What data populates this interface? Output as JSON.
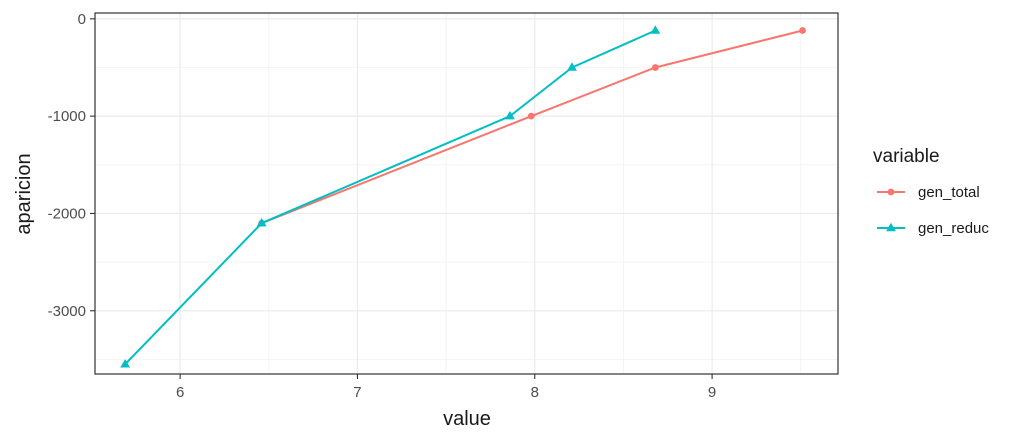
{
  "chart_data": {
    "type": "line",
    "xlabel": "value",
    "ylabel": "aparicion",
    "xlim": [
      5.52,
      9.71
    ],
    "ylim": [
      -3650,
      60
    ],
    "x_ticks": [
      6,
      7,
      8,
      9
    ],
    "y_ticks": [
      0,
      -1000,
      -2000,
      -3000
    ],
    "x_tick_labels": [
      "6",
      "7",
      "8",
      "9"
    ],
    "y_tick_labels": [
      "0",
      "-1000",
      "-2000",
      "-3000"
    ],
    "grid": true,
    "legend": {
      "title": "variable",
      "position": "right"
    },
    "series": [
      {
        "name": "gen_total",
        "color": "#F8766D",
        "marker": "circle",
        "x": [
          6.46,
          7.98,
          8.68,
          9.51
        ],
        "y": [
          -2100,
          -1000,
          -500,
          -120
        ]
      },
      {
        "name": "gen_reduc",
        "color": "#00BFC4",
        "marker": "triangle",
        "x": [
          5.69,
          6.46,
          7.86,
          8.21,
          8.68
        ],
        "y": [
          -3550,
          -2100,
          -1000,
          -500,
          -120
        ]
      }
    ]
  }
}
